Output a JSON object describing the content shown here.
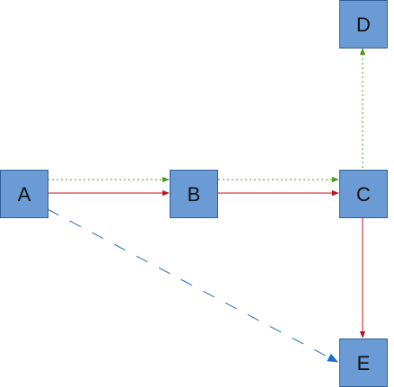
{
  "diagram": {
    "nodes": [
      {
        "id": "A",
        "label": "A"
      },
      {
        "id": "B",
        "label": "B"
      },
      {
        "id": "C",
        "label": "C"
      },
      {
        "id": "D",
        "label": "D"
      },
      {
        "id": "E",
        "label": "E"
      }
    ],
    "edges": [
      {
        "from": "A",
        "to": "B",
        "style": "solid",
        "color": "#c0101e"
      },
      {
        "from": "A",
        "to": "B",
        "style": "dotted",
        "color": "#4e9a1c"
      },
      {
        "from": "B",
        "to": "C",
        "style": "solid",
        "color": "#c0101e"
      },
      {
        "from": "B",
        "to": "C",
        "style": "dotted",
        "color": "#4e9a1c"
      },
      {
        "from": "C",
        "to": "D",
        "style": "dotted",
        "color": "#4e9a1c"
      },
      {
        "from": "C",
        "to": "E",
        "style": "solid",
        "color": "#c0101e"
      },
      {
        "from": "A",
        "to": "E",
        "style": "dashed",
        "color": "#1f6cc4"
      }
    ],
    "colors": {
      "node_fill": "#6a9bd4",
      "node_stroke": "#2f5f95",
      "red": "#c0101e",
      "green": "#4e9a1c",
      "blue": "#1f6cc4"
    }
  }
}
